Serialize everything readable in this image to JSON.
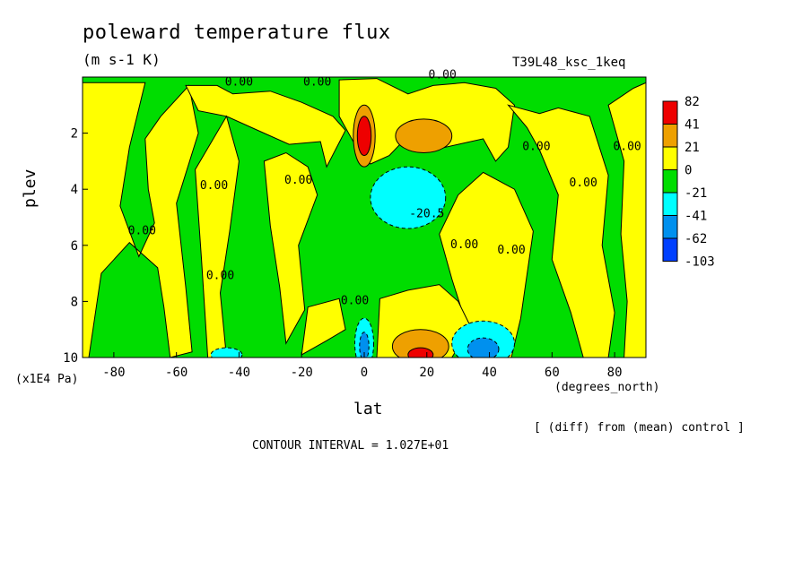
{
  "header": {
    "title": "poleward temperature flux",
    "units": "(m s-1 K)",
    "run": "T39L48_ksc_1keq"
  },
  "footer": {
    "diff_note": "[ (diff) from (mean) control ]",
    "contour_interval": "CONTOUR INTERVAL = 1.027E+01"
  },
  "colors": {
    "red": "#ee0000",
    "orange": "#eea000",
    "yellow": "#ffff00",
    "green": "#00dd00",
    "cyan": "#00ffff",
    "mid_blue": "#0090ee",
    "blue": "#0040ff"
  },
  "chart_data": {
    "type": "heatmap",
    "title": "poleward temperature flux",
    "xlabel": "lat",
    "x_units": "(degrees_north)",
    "ylabel": "plev",
    "y_units": "(x1E4 Pa)",
    "xlim": [
      -90,
      90
    ],
    "ylim": [
      10,
      0
    ],
    "x_ticks": [
      -80,
      -60,
      -40,
      -20,
      0,
      20,
      40,
      60,
      80
    ],
    "x_tick_labels": [
      "-80",
      "-60",
      "-40",
      "-20",
      "0",
      "20",
      "40",
      "60",
      "80"
    ],
    "y_ticks": [
      2,
      4,
      6,
      8,
      10
    ],
    "y_tick_labels": [
      "2",
      "4",
      "6",
      "8",
      "10"
    ],
    "colorbar": {
      "labels": [
        "82",
        "41",
        "21",
        "0",
        "-21",
        "-41",
        "-62",
        "-103"
      ],
      "band_colors": [
        "#ee0000",
        "#eea000",
        "#ffff00",
        "#00dd00",
        "#00ffff",
        "#0090ee",
        "#0040ff"
      ]
    },
    "contour_labels": [
      {
        "text": "0.00",
        "lat": -40,
        "plev": 0.3
      },
      {
        "text": "0.00",
        "lat": -15,
        "plev": 0.3
      },
      {
        "text": "0.00",
        "lat": 25,
        "plev": 0.05
      },
      {
        "text": "0.00",
        "lat": -71,
        "plev": 5.6
      },
      {
        "text": "0.00",
        "lat": -48,
        "plev": 4.0
      },
      {
        "text": "0.00",
        "lat": -21,
        "plev": 3.8
      },
      {
        "text": "0.00",
        "lat": -46,
        "plev": 7.2
      },
      {
        "text": "0.00",
        "lat": -3,
        "plev": 8.1
      },
      {
        "text": "0.00",
        "lat": 32,
        "plev": 6.1
      },
      {
        "text": "0.00",
        "lat": 47,
        "plev": 6.3
      },
      {
        "text": "0.00",
        "lat": 55,
        "plev": 2.6
      },
      {
        "text": "0.00",
        "lat": 70,
        "plev": 3.9
      },
      {
        "text": "0.00",
        "lat": 84,
        "plev": 2.6
      },
      {
        "text": "-20.5",
        "lat": 20,
        "plev": 5.0
      }
    ],
    "features": [
      {
        "sign": "positive",
        "lat": 0,
        "plev": 2.1,
        "peak": 82
      },
      {
        "sign": "positive",
        "lat": 20,
        "plev": 2.1,
        "peak": 41
      },
      {
        "sign": "negative",
        "lat": 14,
        "plev": 4.3,
        "peak": -41
      },
      {
        "sign": "positive",
        "lat": 18,
        "plev": 9.6,
        "peak": 82
      },
      {
        "sign": "negative",
        "lat": 0,
        "plev": 9.5,
        "peak": -62
      },
      {
        "sign": "negative",
        "lat": 40,
        "plev": 9.5,
        "peak": -62
      }
    ],
    "grid": false,
    "legend": "right"
  }
}
